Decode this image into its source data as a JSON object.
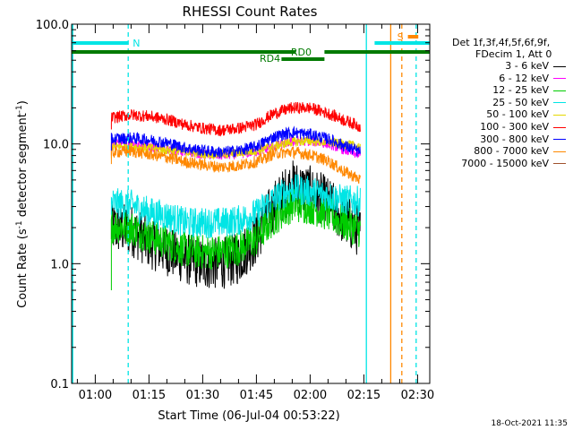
{
  "chart_data": {
    "type": "line",
    "title": "RHESSI Count Rates",
    "xlabel": "Start Time (06-Jul-04 00:53:22)",
    "ylabel_main": "Count Rate (s",
    "ylabel_sup1": "-1",
    "ylabel_mid": " detector segment",
    "ylabel_sup2": "-1",
    "ylabel_end": ")",
    "yscale": "log",
    "ylim": [
      0.1,
      100
    ],
    "xlim_minutes": [
      53.4,
      153.4
    ],
    "x_ticks": [
      {
        "label": "01:00",
        "minute": 60
      },
      {
        "label": "01:15",
        "minute": 75
      },
      {
        "label": "01:30",
        "minute": 90
      },
      {
        "label": "01:45",
        "minute": 105
      },
      {
        "label": "02:00",
        "minute": 120
      },
      {
        "label": "02:15",
        "minute": 135
      },
      {
        "label": "02:30",
        "minute": 150
      }
    ],
    "y_ticks": [
      {
        "label": "0.1",
        "value": 0.1
      },
      {
        "label": "1.0",
        "value": 1.0
      },
      {
        "label": "10.0",
        "value": 10.0
      },
      {
        "label": "100.0",
        "value": 100.0
      }
    ],
    "legend": {
      "header1": "Det 1f,3f,4f,5f,6f,9f,",
      "header2": "FDecim 1, Att 0",
      "position": "right"
    },
    "series": [
      {
        "name": "3 - 6 keV",
        "color": "#000000",
        "x": [
          64.5,
          70,
          75,
          80,
          85,
          90,
          95,
          100,
          105,
          110,
          115,
          120,
          125,
          129,
          134
        ],
        "y": [
          2.0,
          1.9,
          1.5,
          1.3,
          1.1,
          1.0,
          1.0,
          1.1,
          1.6,
          3.0,
          4.5,
          4.0,
          3.2,
          2.4,
          1.8
        ]
      },
      {
        "name": "6 - 12 keV",
        "color": "#ff00ff",
        "x": [
          64.5,
          70,
          75,
          80,
          85,
          90,
          95,
          100,
          105,
          110,
          115,
          120,
          125,
          129,
          134
        ],
        "y": [
          10.0,
          9.8,
          9.5,
          9.0,
          8.6,
          8.2,
          8.0,
          8.2,
          8.6,
          9.5,
          10.5,
          10.5,
          10.0,
          9.0,
          8.0
        ]
      },
      {
        "name": "12 - 25 keV",
        "color": "#00cc00",
        "x": [
          64.5,
          70,
          75,
          80,
          85,
          90,
          95,
          100,
          105,
          110,
          115,
          120,
          125,
          129,
          134
        ],
        "y": [
          2.1,
          2.0,
          1.7,
          1.5,
          1.3,
          1.25,
          1.25,
          1.35,
          1.6,
          2.4,
          3.1,
          3.0,
          2.6,
          2.2,
          1.9
        ]
      },
      {
        "name": "25 - 50 keV",
        "color": "#00e5e5",
        "x": [
          64.5,
          70,
          75,
          80,
          85,
          90,
          95,
          100,
          105,
          110,
          115,
          120,
          125,
          129,
          134
        ],
        "y": [
          3.2,
          3.1,
          2.7,
          2.5,
          2.2,
          2.2,
          2.2,
          2.3,
          2.6,
          3.5,
          4.2,
          4.0,
          3.7,
          3.4,
          3.3
        ]
      },
      {
        "name": "50 - 100 keV",
        "color": "#e5d800",
        "x": [
          64.5,
          70,
          75,
          80,
          85,
          90,
          95,
          100,
          105,
          110,
          115,
          120,
          125,
          129,
          134
        ],
        "y": [
          9.5,
          9.5,
          9.2,
          8.9,
          8.6,
          8.3,
          8.2,
          8.4,
          8.8,
          9.6,
          10.4,
          10.6,
          10.3,
          10.0,
          9.5
        ]
      },
      {
        "name": "100 - 300 keV",
        "color": "#ff0000",
        "x": [
          64.5,
          70,
          75,
          80,
          85,
          90,
          95,
          100,
          105,
          110,
          115,
          120,
          125,
          129,
          134
        ],
        "y": [
          16.5,
          17.5,
          17.0,
          16.0,
          14.5,
          13.5,
          13.0,
          13.5,
          14.5,
          18.0,
          20.0,
          20.0,
          18.0,
          16.0,
          14.0
        ]
      },
      {
        "name": "300 - 800 keV",
        "color": "#0000ff",
        "x": [
          64.5,
          70,
          75,
          80,
          85,
          90,
          95,
          100,
          105,
          110,
          115,
          120,
          125,
          129,
          134
        ],
        "y": [
          11.0,
          11.2,
          10.8,
          10.2,
          9.3,
          8.8,
          8.5,
          8.8,
          9.5,
          11.5,
          12.5,
          12.0,
          11.0,
          9.8,
          8.5
        ]
      },
      {
        "name": "800 - 7000 keV",
        "color": "#ff8800",
        "x": [
          64.5,
          70,
          75,
          80,
          85,
          90,
          95,
          100,
          105,
          110,
          115,
          120,
          125,
          129,
          134
        ],
        "y": [
          8.5,
          8.7,
          8.2,
          7.7,
          7.1,
          6.7,
          6.4,
          6.6,
          7.1,
          8.3,
          8.6,
          8.1,
          7.2,
          6.0,
          5.0
        ]
      },
      {
        "name": "7000 - 15000 keV",
        "color": "#a0522d",
        "x": [],
        "y": []
      }
    ],
    "attenuator_bars": [
      {
        "label": "N",
        "color": "#00e5e5",
        "start": 53.4,
        "end": 69.2
      },
      {
        "label": "",
        "color": "#00e5e5",
        "start": 138.0,
        "end": 153.4
      }
    ],
    "rd_bars": [
      {
        "label": "RD0",
        "color": "#007a00",
        "start": 53.4,
        "end": 116.0,
        "row": "upper"
      },
      {
        "label": "RD0",
        "color": "#007a00",
        "start": 124.0,
        "end": 153.4,
        "row": "upper"
      },
      {
        "label": "RD4",
        "color": "#007a00",
        "start": 112.0,
        "end": 124.0,
        "row": "lower"
      }
    ],
    "saa_bar": {
      "label": "S",
      "color": "#ff8800",
      "start": 147.3,
      "end": 150.2
    },
    "vertical_lines": [
      {
        "minute": 53.7,
        "color": "#00e5e5",
        "style": "solid"
      },
      {
        "minute": 69.2,
        "color": "#00e5e5",
        "style": "dashed"
      },
      {
        "minute": 135.7,
        "color": "#00e5e5",
        "style": "solid"
      },
      {
        "minute": 142.5,
        "color": "#ff8800",
        "style": "solid"
      },
      {
        "minute": 145.6,
        "color": "#ff8800",
        "style": "dashed"
      },
      {
        "minute": 149.6,
        "color": "#00e5e5",
        "style": "dashed"
      }
    ],
    "timestamp": "18-Oct-2021 11:35"
  }
}
